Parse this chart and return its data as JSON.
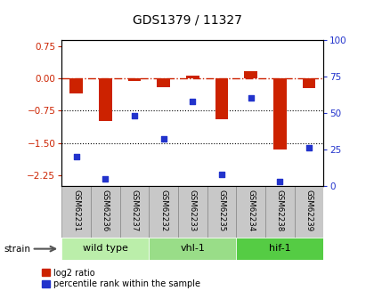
{
  "title": "GDS1379 / 11327",
  "samples": [
    "GSM62231",
    "GSM62236",
    "GSM62237",
    "GSM62232",
    "GSM62233",
    "GSM62235",
    "GSM62234",
    "GSM62238",
    "GSM62239"
  ],
  "log2_ratio": [
    -0.35,
    -1.0,
    -0.05,
    -0.2,
    0.07,
    -0.95,
    0.18,
    -1.65,
    -0.22
  ],
  "percentile_rank": [
    20,
    5,
    48,
    32,
    58,
    8,
    60,
    3,
    26
  ],
  "groups": [
    {
      "label": "wild type",
      "indices": [
        0,
        1,
        2
      ],
      "color": "#bbeeaa"
    },
    {
      "label": "vhl-1",
      "indices": [
        3,
        4,
        5
      ],
      "color": "#99dd88"
    },
    {
      "label": "hif-1",
      "indices": [
        6,
        7,
        8
      ],
      "color": "#55cc44"
    }
  ],
  "ylim_left": [
    -2.5,
    0.9
  ],
  "ylim_right": [
    0,
    100
  ],
  "yticks_left": [
    0.75,
    0.0,
    -0.75,
    -1.5,
    -2.25
  ],
  "yticks_right": [
    100,
    75,
    50,
    25,
    0
  ],
  "bar_color": "#cc2200",
  "dot_color": "#2233cc",
  "dotted_lines": [
    -0.75,
    -1.5
  ],
  "sample_bg": "#c8c8c8",
  "plot_bg": "#ffffff"
}
